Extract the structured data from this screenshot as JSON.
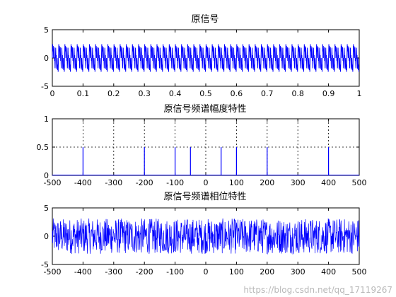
{
  "colors": {
    "line": "#0000ff",
    "axes": "#000000",
    "grid": "#000000",
    "background": "#ffffff"
  },
  "watermark": "https://blog.csdn.net/qq_17119267",
  "chart_data": [
    {
      "type": "line",
      "title": "原信号",
      "xlim": [
        0,
        1
      ],
      "ylim": [
        -5,
        5
      ],
      "xticks": [
        0,
        0.1,
        0.2,
        0.3,
        0.4,
        0.5,
        0.6,
        0.7,
        0.8,
        0.9,
        1
      ],
      "xtick_labels": [
        "0",
        "0.1",
        "0.2",
        "0.3",
        "0.4",
        "0.5",
        "0.6",
        "0.7",
        "0.8",
        "0.9",
        "1"
      ],
      "yticks": [
        -5,
        0,
        5
      ],
      "ytick_labels": [
        "-5",
        "0",
        "5"
      ],
      "grid": false,
      "series": [
        {
          "kind": "sinusoid_sum",
          "sample_rate": 1000,
          "n": 1000,
          "components": [
            {
              "freq": 50,
              "amp": 1
            },
            {
              "freq": 100,
              "amp": 1
            },
            {
              "freq": 200,
              "amp": 1
            },
            {
              "freq": 400,
              "amp": 1
            }
          ]
        }
      ]
    },
    {
      "type": "line",
      "title": "原信号频谱幅度特性",
      "xlim": [
        -500,
        500
      ],
      "ylim": [
        0,
        1
      ],
      "xticks": [
        -500,
        -400,
        -300,
        -200,
        -100,
        0,
        100,
        200,
        300,
        400,
        500
      ],
      "xtick_labels": [
        "-500",
        "-400",
        "-300",
        "-200",
        "-100",
        "0",
        "100",
        "200",
        "300",
        "400",
        "500"
      ],
      "yticks": [
        0,
        0.5,
        1
      ],
      "ytick_labels": [
        "0",
        "0.5",
        "1"
      ],
      "grid": true,
      "series": [
        {
          "kind": "spectrum_peaks",
          "peaks": [
            {
              "x": -400,
              "y": 0.5
            },
            {
              "x": -200,
              "y": 0.5
            },
            {
              "x": -100,
              "y": 0.5
            },
            {
              "x": -50,
              "y": 0.5
            },
            {
              "x": 50,
              "y": 0.5
            },
            {
              "x": 100,
              "y": 0.5
            },
            {
              "x": 200,
              "y": 0.5
            },
            {
              "x": 400,
              "y": 0.5
            }
          ],
          "baseline": 0.005
        }
      ]
    },
    {
      "type": "line",
      "title": "原信号频谱相位特性",
      "xlim": [
        -500,
        500
      ],
      "ylim": [
        -5,
        5
      ],
      "xticks": [
        -500,
        -400,
        -300,
        -200,
        -100,
        0,
        100,
        200,
        300,
        400,
        500
      ],
      "xtick_labels": [
        "-500",
        "-400",
        "-300",
        "-200",
        "-100",
        "0",
        "100",
        "200",
        "300",
        "400",
        "500"
      ],
      "yticks": [
        -5,
        0,
        5
      ],
      "ytick_labels": [
        "-5",
        "0",
        "5"
      ],
      "grid": false,
      "series": [
        {
          "kind": "random_phase",
          "n": 1000,
          "range": [
            -3.14159,
            3.14159
          ]
        }
      ]
    }
  ]
}
